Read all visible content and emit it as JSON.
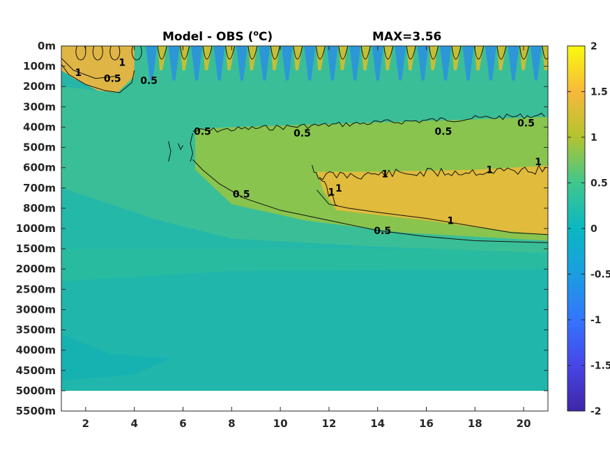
{
  "chart_data": {
    "type": "heatmap",
    "title": "Model - OBS (",
    "title_unit_sup": "o",
    "title_unit_tail": "C)",
    "max_label": "MAX=3.56",
    "y_tick_labels": [
      "0m",
      "100m",
      "200m",
      "300m",
      "400m",
      "500m",
      "600m",
      "700m",
      "800m",
      "1000m",
      "1500m",
      "2000m",
      "2500m",
      "3000m",
      "3500m",
      "4000m",
      "4500m",
      "5000m",
      "5500m"
    ],
    "x_tick_labels": [
      "2",
      "4",
      "6",
      "8",
      "10",
      "12",
      "14",
      "16",
      "18",
      "20"
    ],
    "x_ticks": [
      2,
      4,
      6,
      8,
      10,
      12,
      14,
      16,
      18,
      20
    ],
    "xlim": [
      1,
      21
    ],
    "colorbar": {
      "ticks": [
        2,
        1.5,
        1,
        0.5,
        0,
        -0.5,
        -1,
        -1.5,
        -2
      ],
      "tick_labels": [
        "2",
        "1.5",
        "1",
        "0.5",
        "0",
        "-0.5",
        "-1",
        "-1.5",
        "-2"
      ],
      "range": [
        -2,
        2
      ],
      "colormap": "parula"
    },
    "contour_levels": [
      0.5,
      1
    ],
    "contour_labels": [
      {
        "text": "1",
        "x": 1.7,
        "level_index": 1.3
      },
      {
        "text": "1",
        "x": 3.5,
        "level_index": 0.8
      },
      {
        "text": "0.5",
        "x": 3.1,
        "level_index": 1.6
      },
      {
        "text": "0.5",
        "x": 4.6,
        "level_index": 1.7
      },
      {
        "text": "0.5",
        "x": 6.8,
        "level_index": 4.2
      },
      {
        "text": "0.5",
        "x": 10.9,
        "level_index": 4.3
      },
      {
        "text": "0.5",
        "x": 16.7,
        "level_index": 4.2
      },
      {
        "text": "0.5",
        "x": 20.1,
        "level_index": 3.8
      },
      {
        "text": "1",
        "x": 14.3,
        "level_index": 6.3
      },
      {
        "text": "1",
        "x": 18.6,
        "level_index": 6.1
      },
      {
        "text": "1",
        "x": 20.6,
        "level_index": 5.7
      },
      {
        "text": "1",
        "x": 12.4,
        "level_index": 7.0
      },
      {
        "text": "1",
        "x": 12.1,
        "level_index": 7.2
      },
      {
        "text": "0.5",
        "x": 8.4,
        "level_index": 7.3
      },
      {
        "text": "1",
        "x": 17.0,
        "level_index": 8.6
      },
      {
        "text": "0.5",
        "x": 14.2,
        "level_index": 9.1
      }
    ],
    "grid": false
  }
}
